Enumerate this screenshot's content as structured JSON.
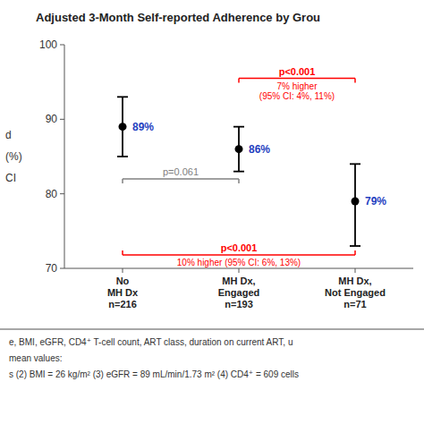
{
  "chart_data": {
    "type": "errorbar",
    "title": "Adjusted 3-Month Self-reported Adherence by Grou",
    "y_label": "d\n(%)\nCI",
    "categories": [
      "No\nMH Dx\nn=216",
      "MH Dx,\nEngaged\nn=193",
      "MH Dx,\nNot Engaged\nn=71"
    ],
    "values": [
      89,
      86,
      79
    ],
    "ci_lower": [
      85,
      83,
      73
    ],
    "ci_upper": [
      93,
      89,
      84
    ],
    "value_labels": [
      "89%",
      "86%",
      "79%"
    ],
    "data_labels": true,
    "color": "#000000",
    "ylim": [
      70,
      100
    ],
    "yticks": [
      70,
      80,
      90,
      100
    ],
    "grid": false,
    "annotations": [
      {
        "groups": [
          0,
          1
        ],
        "y": 82.0,
        "label": "p=0.061",
        "color": "gray"
      },
      {
        "groups": [
          1,
          2
        ],
        "y": 95.5,
        "label": "p<0.001",
        "note": "7% higher\n(95% CI: 4%, 11%)",
        "color": "red"
      },
      {
        "groups": [
          0,
          2
        ],
        "y": 71.8,
        "label": "p<0.001",
        "note": "10% higher (95% CI: 6%, 13%)",
        "color": "red"
      }
    ],
    "footnotes": [
      "e, BMI, eGFR, CD4⁺ T-cell count, ART class, duration on current ART, u",
      "mean values:",
      "s (2) BMI = 26 kg/m² (3) eGFR = 89 mL/min/1.73 m² (4) CD4⁺ = 609 cells"
    ]
  }
}
